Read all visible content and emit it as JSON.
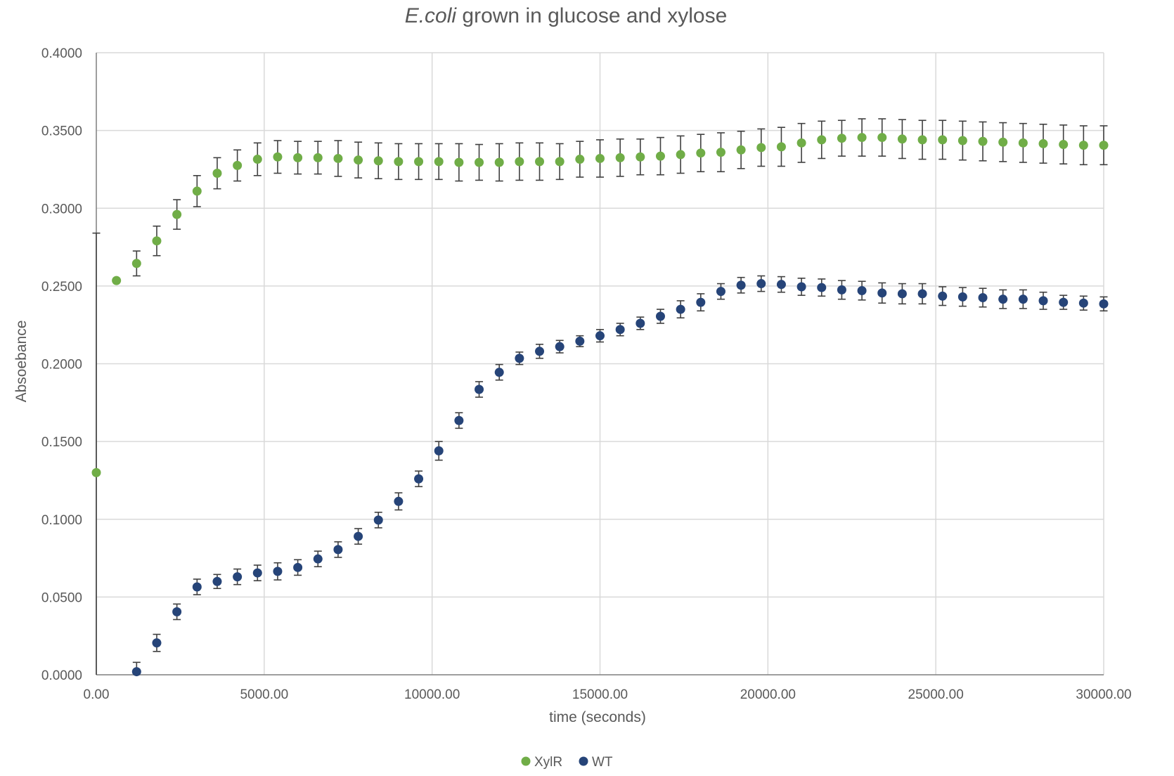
{
  "chart_data": {
    "type": "scatter",
    "title_italic": "E.coli",
    "title_rest": " grown in glucose and xylose",
    "xlabel": "time (seconds)",
    "ylabel": "Absoebance",
    "xlim": [
      0,
      30000
    ],
    "ylim": [
      0,
      0.4
    ],
    "x_ticks": [
      "0.00",
      "5000.00",
      "10000.00",
      "15000.00",
      "20000.00",
      "25000.00",
      "30000.00"
    ],
    "y_ticks": [
      "0.0000",
      "0.0500",
      "0.1000",
      "0.1500",
      "0.2000",
      "0.2500",
      "0.3000",
      "0.3500",
      "0.4000"
    ],
    "grid": true,
    "error_bars": true,
    "legend_position": "bottom",
    "series": [
      {
        "name": "XylR",
        "color": "#70AD47",
        "x": [
          0,
          600,
          1200,
          1800,
          2400,
          3000,
          3600,
          4200,
          4800,
          5400,
          6000,
          6600,
          7200,
          7800,
          8400,
          9000,
          9600,
          10200,
          10800,
          11400,
          12000,
          12600,
          13200,
          13800,
          14400,
          15000,
          15600,
          16200,
          16800,
          17400,
          18000,
          18600,
          19200,
          19800,
          20400,
          21000,
          21600,
          22200,
          22800,
          23400,
          24000,
          24600,
          25200,
          25800,
          26400,
          27000,
          27600,
          28200,
          28800,
          29400,
          30000
        ],
        "y": [
          0.13,
          0.2535,
          0.2645,
          0.279,
          0.296,
          0.311,
          0.3225,
          0.3275,
          0.3315,
          0.333,
          0.3325,
          0.3325,
          0.332,
          0.331,
          0.3305,
          0.33,
          0.33,
          0.33,
          0.3295,
          0.3295,
          0.3295,
          0.33,
          0.33,
          0.33,
          0.3315,
          0.332,
          0.3325,
          0.333,
          0.3335,
          0.3345,
          0.3355,
          0.336,
          0.3375,
          0.339,
          0.3395,
          0.342,
          0.344,
          0.345,
          0.3455,
          0.3455,
          0.3445,
          0.344,
          0.344,
          0.3435,
          0.343,
          0.3425,
          0.342,
          0.3415,
          0.341,
          0.3405,
          0.3405
        ],
        "err": [
          0.154,
          0,
          0.008,
          0.0095,
          0.0095,
          0.01,
          0.01,
          0.01,
          0.0105,
          0.0105,
          0.0105,
          0.0105,
          0.0115,
          0.0115,
          0.0115,
          0.0115,
          0.0115,
          0.0115,
          0.012,
          0.0115,
          0.012,
          0.012,
          0.012,
          0.0115,
          0.0115,
          0.012,
          0.012,
          0.0115,
          0.012,
          0.012,
          0.012,
          0.0125,
          0.012,
          0.012,
          0.0125,
          0.0125,
          0.012,
          0.0115,
          0.012,
          0.012,
          0.0125,
          0.0125,
          0.0125,
          0.0125,
          0.0125,
          0.0125,
          0.0125,
          0.0125,
          0.0125,
          0.0125,
          0.0125
        ]
      },
      {
        "name": "WT",
        "color": "#264478",
        "x": [
          1200,
          1800,
          2400,
          3000,
          3600,
          4200,
          4800,
          5400,
          6000,
          6600,
          7200,
          7800,
          8400,
          9000,
          9600,
          10200,
          10800,
          11400,
          12000,
          12600,
          13200,
          13800,
          14400,
          15000,
          15600,
          16200,
          16800,
          17400,
          18000,
          18600,
          19200,
          19800,
          20400,
          21000,
          21600,
          22200,
          22800,
          23400,
          24000,
          24600,
          25200,
          25800,
          26400,
          27000,
          27600,
          28200,
          28800,
          29400,
          30000
        ],
        "y": [
          0.002,
          0.0205,
          0.0405,
          0.0565,
          0.06,
          0.063,
          0.0655,
          0.0665,
          0.069,
          0.0745,
          0.0805,
          0.089,
          0.0995,
          0.1115,
          0.126,
          0.144,
          0.1635,
          0.1835,
          0.1945,
          0.2035,
          0.208,
          0.211,
          0.2145,
          0.218,
          0.222,
          0.226,
          0.2305,
          0.235,
          0.2395,
          0.2465,
          0.2505,
          0.2515,
          0.251,
          0.2495,
          0.249,
          0.2475,
          0.247,
          0.2455,
          0.245,
          0.245,
          0.2435,
          0.243,
          0.2425,
          0.2415,
          0.2415,
          0.2405,
          0.2395,
          0.239,
          0.2385
        ],
        "err": [
          0.006,
          0.0055,
          0.005,
          0.005,
          0.0045,
          0.005,
          0.005,
          0.0055,
          0.005,
          0.005,
          0.005,
          0.005,
          0.005,
          0.0055,
          0.005,
          0.006,
          0.005,
          0.005,
          0.005,
          0.004,
          0.0045,
          0.004,
          0.0035,
          0.004,
          0.004,
          0.004,
          0.0045,
          0.0055,
          0.0055,
          0.005,
          0.005,
          0.005,
          0.005,
          0.0055,
          0.0055,
          0.006,
          0.006,
          0.0065,
          0.0065,
          0.0065,
          0.006,
          0.006,
          0.006,
          0.006,
          0.006,
          0.0055,
          0.0045,
          0.0045,
          0.0045
        ]
      }
    ]
  }
}
